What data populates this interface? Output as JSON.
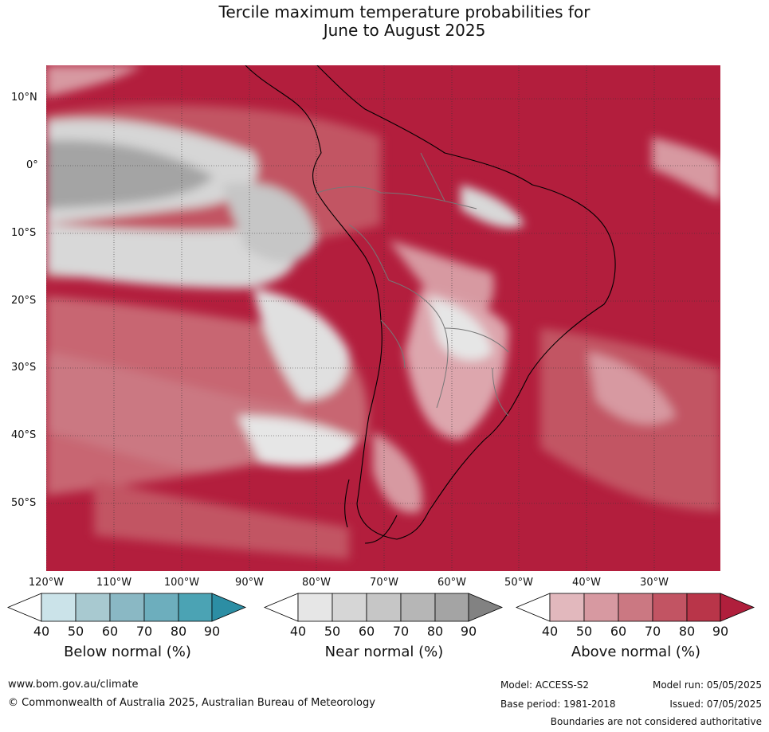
{
  "title": {
    "line1": "Tercile maximum temperature probabilities for",
    "line2": "June to August 2025"
  },
  "axes": {
    "lat_labels": [
      "10°N",
      "0°",
      "10°S",
      "20°S",
      "30°S",
      "40°S",
      "50°S"
    ],
    "lon_labels": [
      "120°W",
      "110°W",
      "100°W",
      "90°W",
      "80°W",
      "70°W",
      "60°W",
      "50°W",
      "40°W",
      "30°W"
    ]
  },
  "legends": [
    {
      "label": "Below normal (%)",
      "ticks": [
        "40",
        "50",
        "60",
        "70",
        "80",
        "90"
      ],
      "colors": [
        "#ffffff",
        "#cbe3e9",
        "#a8c9d0",
        "#8ab8c4",
        "#6daebd",
        "#4ba3b4",
        "#2c8ea4"
      ]
    },
    {
      "label": "Near normal (%)",
      "ticks": [
        "40",
        "50",
        "60",
        "70",
        "80",
        "90"
      ],
      "colors": [
        "#ffffff",
        "#e6e6e6",
        "#d6d6d6",
        "#c6c6c6",
        "#b6b6b6",
        "#a4a4a4",
        "#828282"
      ]
    },
    {
      "label": "Above normal (%)",
      "ticks": [
        "40",
        "50",
        "60",
        "70",
        "80",
        "90"
      ],
      "colors": [
        "#ffffff",
        "#e2b8bd",
        "#d799a1",
        "#cb7882",
        "#c25463",
        "#b93549",
        "#b01f3c"
      ]
    }
  ],
  "footer": {
    "url": "www.bom.gov.au/climate",
    "copyright": "© Commonwealth of Australia 2025, Australian Bureau of Meteorology",
    "model": "Model: ACCESS-S2",
    "model_run": "Model run: 05/05/2025",
    "base_period": "Base period: 1981-2018",
    "issued": "Issued: 07/05/2025",
    "disclaimer": "Boundaries are not considered authoritative"
  },
  "colors": {
    "above_high": "#b01f3c",
    "above_mid": "#c25463",
    "above_low": "#d799a1",
    "near_low": "#e6e6e6",
    "near_mid": "#d0d0d0",
    "near_high": "#a4a4a4"
  }
}
